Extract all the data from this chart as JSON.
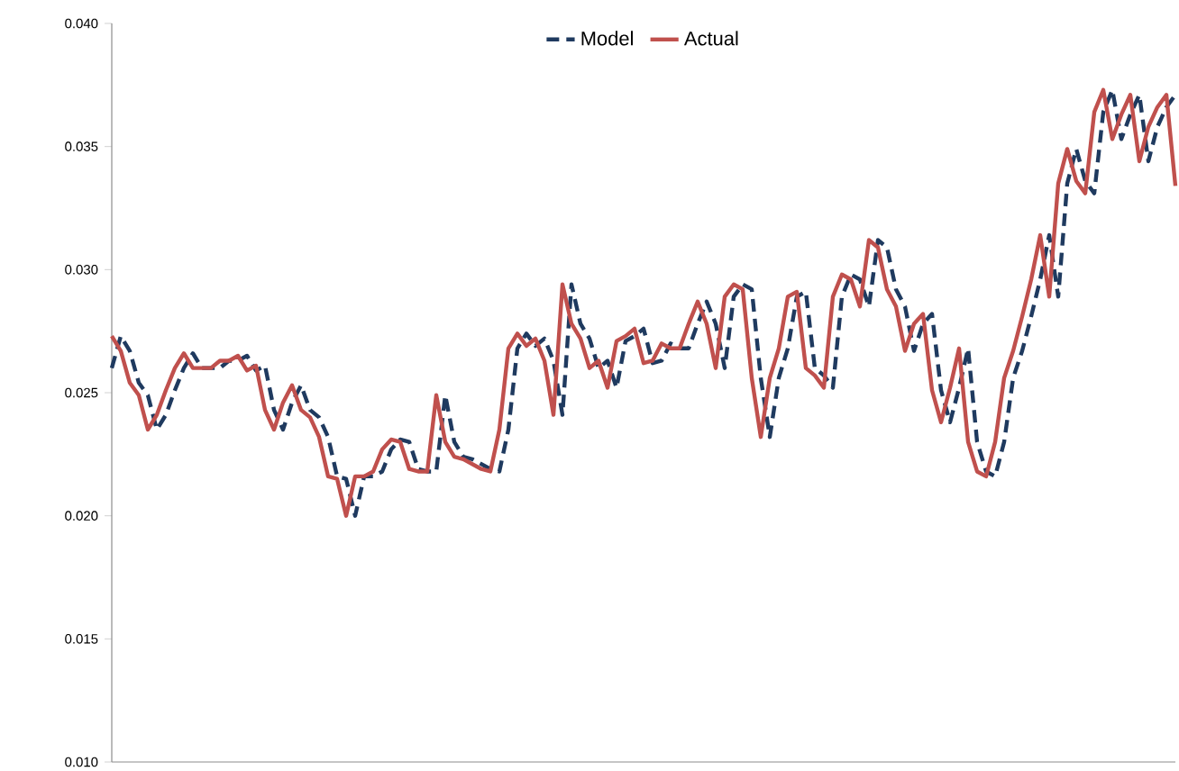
{
  "chart_data": {
    "type": "line",
    "categories": [
      null,
      null,
      null,
      null,
      null,
      null,
      null,
      null,
      null,
      null,
      null,
      null,
      null,
      null,
      null,
      null,
      null,
      null,
      null,
      null,
      null,
      null,
      null,
      null,
      null,
      null,
      null,
      null,
      null,
      null,
      null,
      null,
      null,
      null,
      null,
      null,
      null,
      null,
      null,
      null,
      null,
      null,
      null,
      null,
      null,
      null,
      null,
      null,
      null,
      null,
      null,
      null,
      null,
      null,
      null,
      null,
      null,
      null,
      null,
      null,
      null,
      null,
      null,
      null,
      null,
      null,
      null,
      null,
      null,
      null,
      null,
      null,
      null,
      null,
      null,
      null,
      null,
      null,
      null,
      null,
      null,
      null,
      null,
      null,
      null,
      null,
      null,
      null,
      null,
      null,
      null,
      null,
      null,
      null,
      null,
      null,
      null,
      null,
      null,
      null,
      null,
      null,
      null,
      null,
      null,
      null,
      null,
      null,
      null,
      null,
      null,
      null,
      null,
      null,
      null,
      null,
      null,
      null,
      null
    ],
    "series": [
      {
        "name": "Model",
        "color": "#1f3a5f",
        "line_style": "dashed",
        "values": [
          0.026,
          0.0273,
          0.0267,
          0.0254,
          0.0249,
          0.0235,
          0.0241,
          0.0251,
          0.026,
          0.0266,
          0.026,
          0.026,
          0.026,
          0.0263,
          0.0263,
          0.0265,
          0.0259,
          0.0261,
          0.0243,
          0.0235,
          0.0246,
          0.0253,
          0.0243,
          0.024,
          0.0232,
          0.0216,
          0.0215,
          0.02,
          0.0216,
          0.0216,
          0.0218,
          0.0227,
          0.0231,
          0.023,
          0.0219,
          0.0218,
          0.0218,
          0.0249,
          0.023,
          0.0224,
          0.0223,
          0.0221,
          0.0219,
          0.0218,
          0.0235,
          0.0268,
          0.0274,
          0.0269,
          0.0272,
          0.0263,
          0.0241,
          0.0294,
          0.0278,
          0.0272,
          0.026,
          0.0263,
          0.0252,
          0.0271,
          0.0273,
          0.0276,
          0.0262,
          0.0263,
          0.027,
          0.0268,
          0.0268,
          0.0278,
          0.0287,
          0.0278,
          0.026,
          0.0289,
          0.0294,
          0.0292,
          0.0256,
          0.0232,
          0.0256,
          0.0268,
          0.0289,
          0.0291,
          0.026,
          0.0257,
          0.0252,
          0.0289,
          0.0298,
          0.0296,
          0.0285,
          0.0312,
          0.0309,
          0.0292,
          0.0285,
          0.0267,
          0.0278,
          0.0282,
          0.0251,
          0.0238,
          0.0252,
          0.0268,
          0.023,
          0.0218,
          0.0216,
          0.023,
          0.0256,
          0.0267,
          0.0281,
          0.0296,
          0.0314,
          0.0289,
          0.0335,
          0.0349,
          0.0336,
          0.0331,
          0.0364,
          0.0373,
          0.0353,
          0.0363,
          0.0371,
          0.0344,
          0.0358,
          0.0366,
          0.0371
        ]
      },
      {
        "name": "Actual",
        "color": "#c0504d",
        "line_style": "solid",
        "values": [
          0.0273,
          0.0267,
          0.0254,
          0.0249,
          0.0235,
          0.0241,
          0.0251,
          0.026,
          0.0266,
          0.026,
          0.026,
          0.026,
          0.0263,
          0.0263,
          0.0265,
          0.0259,
          0.0261,
          0.0243,
          0.0235,
          0.0246,
          0.0253,
          0.0243,
          0.024,
          0.0232,
          0.0216,
          0.0215,
          0.02,
          0.0216,
          0.0216,
          0.0218,
          0.0227,
          0.0231,
          0.023,
          0.0219,
          0.0218,
          0.0218,
          0.0249,
          0.023,
          0.0224,
          0.0223,
          0.0221,
          0.0219,
          0.0218,
          0.0235,
          0.0268,
          0.0274,
          0.0269,
          0.0272,
          0.0263,
          0.0241,
          0.0294,
          0.0278,
          0.0272,
          0.026,
          0.0263,
          0.0252,
          0.0271,
          0.0273,
          0.0276,
          0.0262,
          0.0263,
          0.027,
          0.0268,
          0.0268,
          0.0278,
          0.0287,
          0.0278,
          0.026,
          0.0289,
          0.0294,
          0.0292,
          0.0256,
          0.0232,
          0.0256,
          0.0268,
          0.0289,
          0.0291,
          0.026,
          0.0257,
          0.0252,
          0.0289,
          0.0298,
          0.0296,
          0.0285,
          0.0312,
          0.0309,
          0.0292,
          0.0285,
          0.0267,
          0.0278,
          0.0282,
          0.0251,
          0.0238,
          0.0252,
          0.0268,
          0.023,
          0.0218,
          0.0216,
          0.023,
          0.0256,
          0.0267,
          0.0281,
          0.0296,
          0.0314,
          0.0289,
          0.0335,
          0.0349,
          0.0336,
          0.0331,
          0.0364,
          0.0373,
          0.0353,
          0.0363,
          0.0371,
          0.0344,
          0.0358,
          0.0366,
          0.0371,
          0.0334
        ]
      }
    ],
    "ylim": [
      0.01,
      0.04
    ],
    "yticks": [
      {
        "value": 0.01,
        "label": "0.010"
      },
      {
        "value": 0.015,
        "label": "0.015"
      },
      {
        "value": 0.02,
        "label": "0.020"
      },
      {
        "value": 0.025,
        "label": "0.025"
      },
      {
        "value": 0.03,
        "label": "0.030"
      },
      {
        "value": 0.035,
        "label": "0.035"
      },
      {
        "value": 0.04,
        "label": "0.040"
      }
    ],
    "tick_labels": "y",
    "legend": "top"
  }
}
